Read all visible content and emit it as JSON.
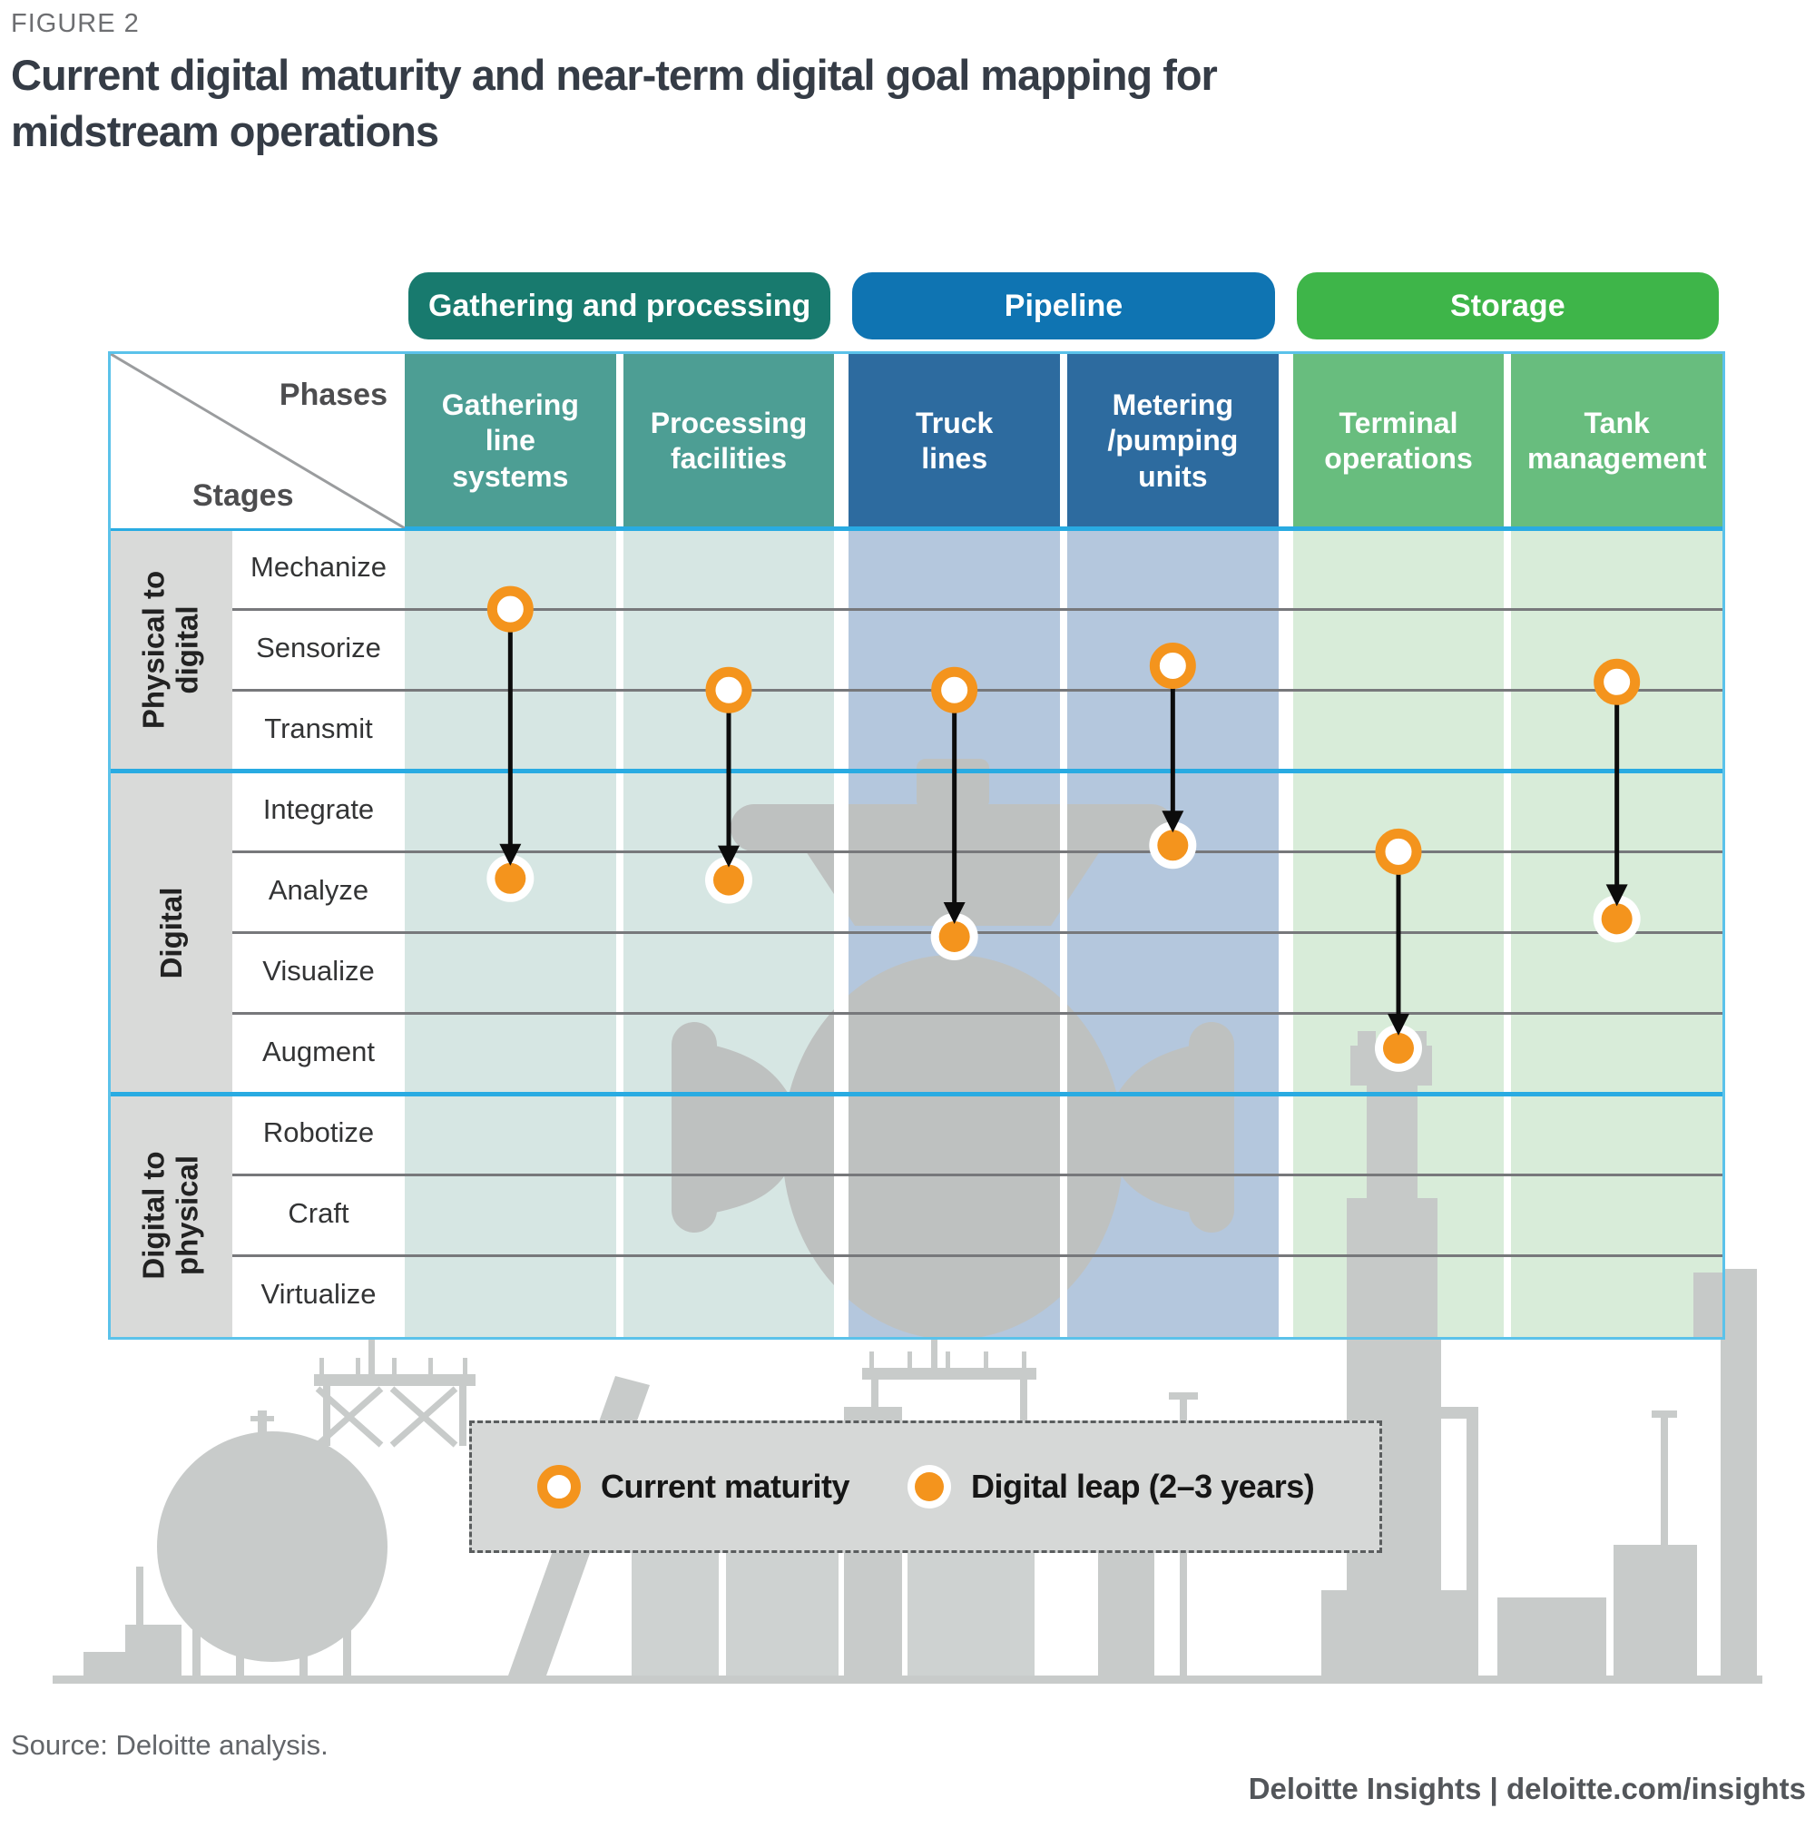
{
  "figure_label": "FIGURE 2",
  "title_line1": "Current digital maturity and near-term digital goal mapping for",
  "title_line2": "midstream operations",
  "source": "Source: Deloitte analysis.",
  "footer": {
    "brand": "Deloitte Insights",
    "separator": " | ",
    "site": "deloitte.com/insights"
  },
  "legend": {
    "current_label": "Current maturity",
    "leap_label": "Digital leap (2–3 years)"
  },
  "matrix": {
    "corner": {
      "phases": "Phases",
      "stages": "Stages"
    },
    "groups": [
      {
        "label": "Gathering and processing",
        "pill_color": "#187a6e",
        "header_color": "#4d9e94",
        "tint": "#d6e6e3",
        "columns": [
          "Gathering\nline\nsystems",
          "Processing\nfacilities"
        ]
      },
      {
        "label": "Pipeline",
        "pill_color": "#0f74b2",
        "header_color": "#2d6b9f",
        "tint": "#b4c7dd",
        "columns": [
          "Truck\nlines",
          "Metering\n/pumping\nunits"
        ]
      },
      {
        "label": "Storage",
        "pill_color": "#3eb549",
        "header_color": "#68bd7e",
        "tint": "#d8ecd9",
        "columns": [
          "Terminal\noperations",
          "Tank\nmanagement"
        ]
      }
    ],
    "stage_groups": [
      {
        "label": "Physical to\ndigital",
        "rows": [
          "Mechanize",
          "Sensorize",
          "Transmit"
        ]
      },
      {
        "label": "Digital",
        "rows": [
          "Integrate",
          "Analyze",
          "Visualize",
          "Augment"
        ]
      },
      {
        "label": "Digital to\nphysical",
        "rows": [
          "Robotize",
          "Craft",
          "Virtualize"
        ]
      }
    ]
  },
  "chart_data": {
    "type": "scatter",
    "title": "Current digital maturity and near-term digital goal mapping for midstream operations",
    "x_categories": [
      "Gathering line systems",
      "Processing facilities",
      "Truck lines",
      "Metering /pumping units",
      "Terminal operations",
      "Tank management"
    ],
    "y_categories": [
      "Mechanize",
      "Sensorize",
      "Transmit",
      "Integrate",
      "Analyze",
      "Visualize",
      "Augment",
      "Robotize",
      "Craft",
      "Virtualize"
    ],
    "y_scale_note": "Levels in row units: 0 = top of Mechanize, 1 = Mechanize/Sensorize boundary, 10 = bottom of Virtualize",
    "legend_position": "bottom",
    "series": [
      {
        "name": "Current maturity",
        "marker": "white circle with orange ring"
      },
      {
        "name": "Digital leap (2–3 years)",
        "marker": "orange dot with white halo"
      }
    ],
    "points": [
      {
        "phase": "Gathering line systems",
        "current_level": 1.0,
        "current_stage": "Mechanize–Sensorize boundary",
        "leap_level": 4.33,
        "leap_stage": "Analyze"
      },
      {
        "phase": "Processing facilities",
        "current_level": 2.0,
        "current_stage": "Sensorize–Transmit boundary",
        "leap_level": 4.35,
        "leap_stage": "Analyze"
      },
      {
        "phase": "Truck lines",
        "current_level": 2.0,
        "current_stage": "Sensorize–Transmit boundary",
        "leap_level": 5.05,
        "leap_stage": "Analyze–Visualize boundary"
      },
      {
        "phase": "Metering /pumping units",
        "current_level": 1.7,
        "current_stage": "Sensorize",
        "leap_level": 3.92,
        "leap_stage": "Integrate–Analyze boundary"
      },
      {
        "phase": "Terminal operations",
        "current_level": 4.0,
        "current_stage": "Integrate–Analyze boundary",
        "leap_level": 6.43,
        "leap_stage": "Augment"
      },
      {
        "phase": "Tank management",
        "current_level": 1.9,
        "current_stage": "Sensorize–Transmit boundary",
        "leap_level": 4.83,
        "leap_stage": "Analyze"
      }
    ],
    "colors": {
      "orange": "#f4941d",
      "arrow": "#0c0c0c",
      "grid_gray": "#77787b",
      "grid_blue": "#29abe2",
      "table_border": "#5bc2ea",
      "strip_gray": "#d9dad9",
      "legend_bg": "#d6d8d7",
      "silhouette_gray": "#c8cbca",
      "valve_gray": "#bec1c0",
      "pill_teal": "#187a6e",
      "pill_blue": "#0f74b2",
      "pill_green": "#3eb549"
    }
  }
}
